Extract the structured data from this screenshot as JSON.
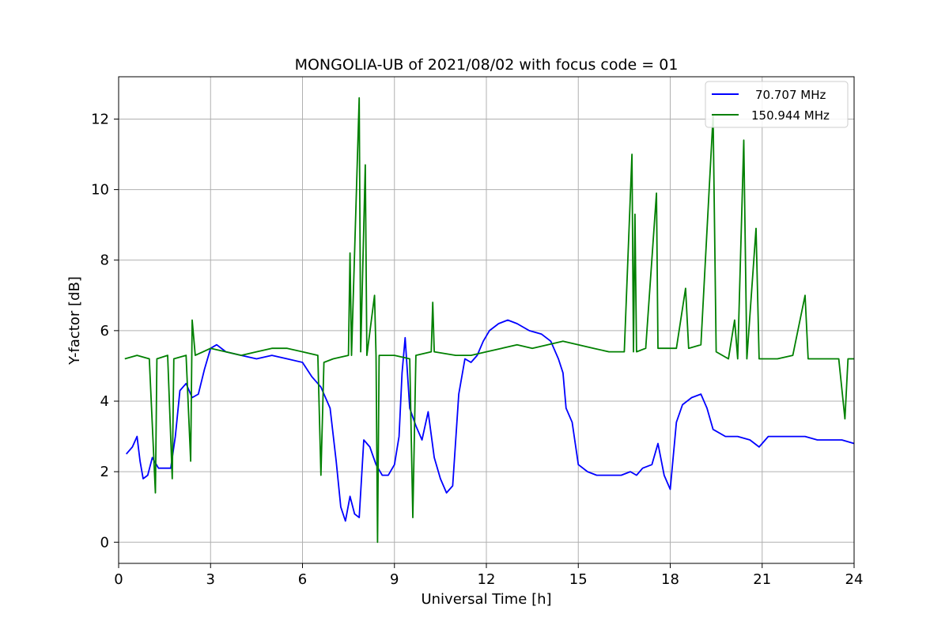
{
  "chart_data": {
    "type": "line",
    "title": "MONGOLIA-UB of 2021/08/02 with focus code = 01",
    "xlabel": "Universal Time [h]",
    "ylabel": "Y-factor [dB]",
    "xlim": [
      0,
      24
    ],
    "ylim": [
      -0.6,
      13.2
    ],
    "xticks": [
      0,
      3,
      6,
      9,
      12,
      15,
      18,
      21,
      24
    ],
    "yticks": [
      0,
      2,
      4,
      6,
      8,
      10,
      12
    ],
    "grid": true,
    "legend_position": "top-right",
    "series": [
      {
        "name": "70.707 MHz",
        "color": "#0000ff",
        "points": [
          [
            0.25,
            2.5
          ],
          [
            0.45,
            2.7
          ],
          [
            0.6,
            3.0
          ],
          [
            0.7,
            2.3
          ],
          [
            0.8,
            1.8
          ],
          [
            0.95,
            1.9
          ],
          [
            1.1,
            2.4
          ],
          [
            1.3,
            2.1
          ],
          [
            1.5,
            2.1
          ],
          [
            1.7,
            2.1
          ],
          [
            1.85,
            3.0
          ],
          [
            2.0,
            4.3
          ],
          [
            2.2,
            4.5
          ],
          [
            2.4,
            4.1
          ],
          [
            2.6,
            4.2
          ],
          [
            2.8,
            4.9
          ],
          [
            3.0,
            5.5
          ],
          [
            3.2,
            5.6
          ],
          [
            3.5,
            5.4
          ],
          [
            4.0,
            5.3
          ],
          [
            4.5,
            5.2
          ],
          [
            5.0,
            5.3
          ],
          [
            5.5,
            5.2
          ],
          [
            6.0,
            5.1
          ],
          [
            6.3,
            4.7
          ],
          [
            6.6,
            4.4
          ],
          [
            6.9,
            3.8
          ],
          [
            7.1,
            2.3
          ],
          [
            7.25,
            1.0
          ],
          [
            7.4,
            0.6
          ],
          [
            7.55,
            1.3
          ],
          [
            7.7,
            0.8
          ],
          [
            7.85,
            0.7
          ],
          [
            8.0,
            2.9
          ],
          [
            8.2,
            2.7
          ],
          [
            8.4,
            2.2
          ],
          [
            8.6,
            1.9
          ],
          [
            8.8,
            1.9
          ],
          [
            9.0,
            2.2
          ],
          [
            9.15,
            3.0
          ],
          [
            9.25,
            4.8
          ],
          [
            9.35,
            5.8
          ],
          [
            9.5,
            3.8
          ],
          [
            9.7,
            3.3
          ],
          [
            9.9,
            2.9
          ],
          [
            10.1,
            3.7
          ],
          [
            10.3,
            2.4
          ],
          [
            10.5,
            1.8
          ],
          [
            10.7,
            1.4
          ],
          [
            10.9,
            1.6
          ],
          [
            11.1,
            4.2
          ],
          [
            11.3,
            5.2
          ],
          [
            11.5,
            5.1
          ],
          [
            11.7,
            5.3
          ],
          [
            11.9,
            5.7
          ],
          [
            12.1,
            6.0
          ],
          [
            12.4,
            6.2
          ],
          [
            12.7,
            6.3
          ],
          [
            13.0,
            6.2
          ],
          [
            13.4,
            6.0
          ],
          [
            13.8,
            5.9
          ],
          [
            14.1,
            5.7
          ],
          [
            14.35,
            5.2
          ],
          [
            14.5,
            4.8
          ],
          [
            14.6,
            3.8
          ],
          [
            14.8,
            3.4
          ],
          [
            15.0,
            2.2
          ],
          [
            15.3,
            2.0
          ],
          [
            15.6,
            1.9
          ],
          [
            16.0,
            1.9
          ],
          [
            16.4,
            1.9
          ],
          [
            16.7,
            2.0
          ],
          [
            16.9,
            1.9
          ],
          [
            17.1,
            2.1
          ],
          [
            17.4,
            2.2
          ],
          [
            17.6,
            2.8
          ],
          [
            17.8,
            1.9
          ],
          [
            18.0,
            1.5
          ],
          [
            18.2,
            3.4
          ],
          [
            18.4,
            3.9
          ],
          [
            18.7,
            4.1
          ],
          [
            19.0,
            4.2
          ],
          [
            19.2,
            3.8
          ],
          [
            19.4,
            3.2
          ],
          [
            19.8,
            3.0
          ],
          [
            20.2,
            3.0
          ],
          [
            20.6,
            2.9
          ],
          [
            20.9,
            2.7
          ],
          [
            21.2,
            3.0
          ],
          [
            21.6,
            3.0
          ],
          [
            22.0,
            3.0
          ],
          [
            22.4,
            3.0
          ],
          [
            22.8,
            2.9
          ],
          [
            23.2,
            2.9
          ],
          [
            23.6,
            2.9
          ],
          [
            24.0,
            2.8
          ]
        ]
      },
      {
        "name": "150.944 MHz",
        "color": "#008000",
        "points": [
          [
            0.2,
            5.2
          ],
          [
            0.6,
            5.3
          ],
          [
            1.0,
            5.2
          ],
          [
            1.2,
            1.4
          ],
          [
            1.25,
            5.2
          ],
          [
            1.6,
            5.3
          ],
          [
            1.75,
            1.8
          ],
          [
            1.8,
            5.2
          ],
          [
            2.2,
            5.3
          ],
          [
            2.35,
            2.3
          ],
          [
            2.4,
            6.3
          ],
          [
            2.5,
            5.3
          ],
          [
            3.0,
            5.5
          ],
          [
            3.5,
            5.4
          ],
          [
            4.0,
            5.3
          ],
          [
            4.5,
            5.4
          ],
          [
            5.0,
            5.5
          ],
          [
            5.5,
            5.5
          ],
          [
            6.0,
            5.4
          ],
          [
            6.5,
            5.3
          ],
          [
            6.6,
            1.9
          ],
          [
            6.7,
            5.1
          ],
          [
            7.0,
            5.2
          ],
          [
            7.5,
            5.3
          ],
          [
            7.55,
            8.2
          ],
          [
            7.6,
            5.3
          ],
          [
            7.85,
            12.6
          ],
          [
            7.9,
            5.4
          ],
          [
            8.05,
            10.7
          ],
          [
            8.1,
            5.3
          ],
          [
            8.35,
            7.0
          ],
          [
            8.4,
            5.3
          ],
          [
            8.45,
            0.0
          ],
          [
            8.5,
            5.3
          ],
          [
            9.0,
            5.3
          ],
          [
            9.5,
            5.2
          ],
          [
            9.6,
            0.7
          ],
          [
            9.7,
            5.3
          ],
          [
            10.2,
            5.4
          ],
          [
            10.25,
            6.8
          ],
          [
            10.3,
            5.4
          ],
          [
            11.0,
            5.3
          ],
          [
            11.5,
            5.3
          ],
          [
            12.0,
            5.4
          ],
          [
            12.5,
            5.5
          ],
          [
            13.0,
            5.6
          ],
          [
            13.5,
            5.5
          ],
          [
            14.0,
            5.6
          ],
          [
            14.5,
            5.7
          ],
          [
            15.0,
            5.6
          ],
          [
            15.5,
            5.5
          ],
          [
            16.0,
            5.4
          ],
          [
            16.5,
            5.4
          ],
          [
            16.75,
            11.0
          ],
          [
            16.8,
            5.4
          ],
          [
            16.85,
            9.3
          ],
          [
            16.9,
            5.4
          ],
          [
            17.2,
            5.5
          ],
          [
            17.55,
            9.9
          ],
          [
            17.6,
            5.5
          ],
          [
            18.0,
            5.5
          ],
          [
            18.2,
            5.5
          ],
          [
            18.5,
            7.2
          ],
          [
            18.6,
            5.5
          ],
          [
            19.0,
            5.6
          ],
          [
            19.4,
            12.1
          ],
          [
            19.5,
            5.4
          ],
          [
            19.9,
            5.2
          ],
          [
            20.1,
            6.3
          ],
          [
            20.2,
            5.2
          ],
          [
            20.4,
            11.4
          ],
          [
            20.5,
            5.2
          ],
          [
            20.8,
            8.9
          ],
          [
            20.9,
            5.2
          ],
          [
            21.5,
            5.2
          ],
          [
            22.0,
            5.3
          ],
          [
            22.4,
            7.0
          ],
          [
            22.5,
            5.2
          ],
          [
            23.0,
            5.2
          ],
          [
            23.5,
            5.2
          ],
          [
            23.7,
            3.5
          ],
          [
            23.8,
            5.2
          ],
          [
            24.0,
            5.2
          ]
        ]
      }
    ]
  }
}
